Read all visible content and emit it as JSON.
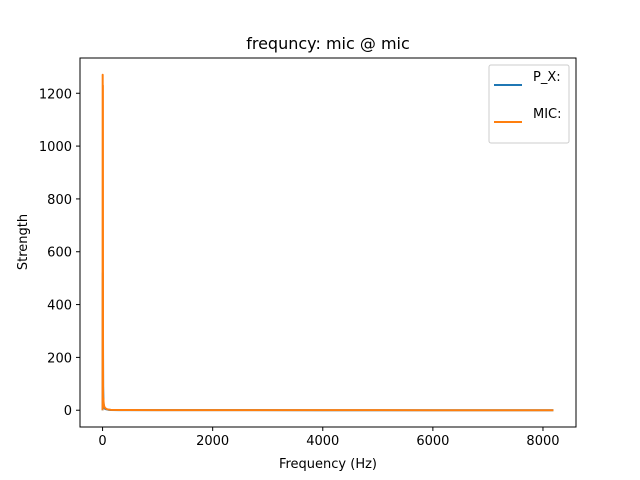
{
  "chart_data": {
    "type": "line",
    "title": "frequncy: mic @ mic",
    "xlabel": "Frequency (Hz)",
    "ylabel": "Strength",
    "xlim": [
      -410,
      8600
    ],
    "ylim": [
      -63.5,
      1333.5
    ],
    "xticks": [
      0,
      2000,
      4000,
      6000,
      8000
    ],
    "yticks": [
      0,
      200,
      400,
      600,
      800,
      1000,
      1200
    ],
    "grid": false,
    "legend_position": "top-right",
    "series": [
      {
        "name": "P_X:",
        "color": "#1f77b4",
        "x": [
          0,
          5,
          10,
          15,
          20,
          30,
          40,
          60,
          80,
          100,
          150,
          300,
          1000,
          2000,
          4000,
          6000,
          8190
        ],
        "y": [
          0,
          520,
          90,
          40,
          20,
          10,
          6,
          4,
          3,
          2,
          1,
          0.5,
          0.3,
          0.2,
          0.1,
          0.1,
          0.1
        ]
      },
      {
        "name": "MIC:",
        "color": "#ff7f0e",
        "x": [
          0,
          2,
          4,
          6,
          8,
          10,
          15,
          20,
          30,
          40,
          60,
          80,
          100,
          150,
          300,
          1000,
          2000,
          4000,
          6000,
          8190
        ],
        "y": [
          0,
          1270,
          60,
          1230,
          200,
          40,
          45,
          25,
          15,
          10,
          6,
          4,
          3,
          1.5,
          0.8,
          0.4,
          0.3,
          0.2,
          0.1,
          0.1
        ]
      }
    ]
  }
}
